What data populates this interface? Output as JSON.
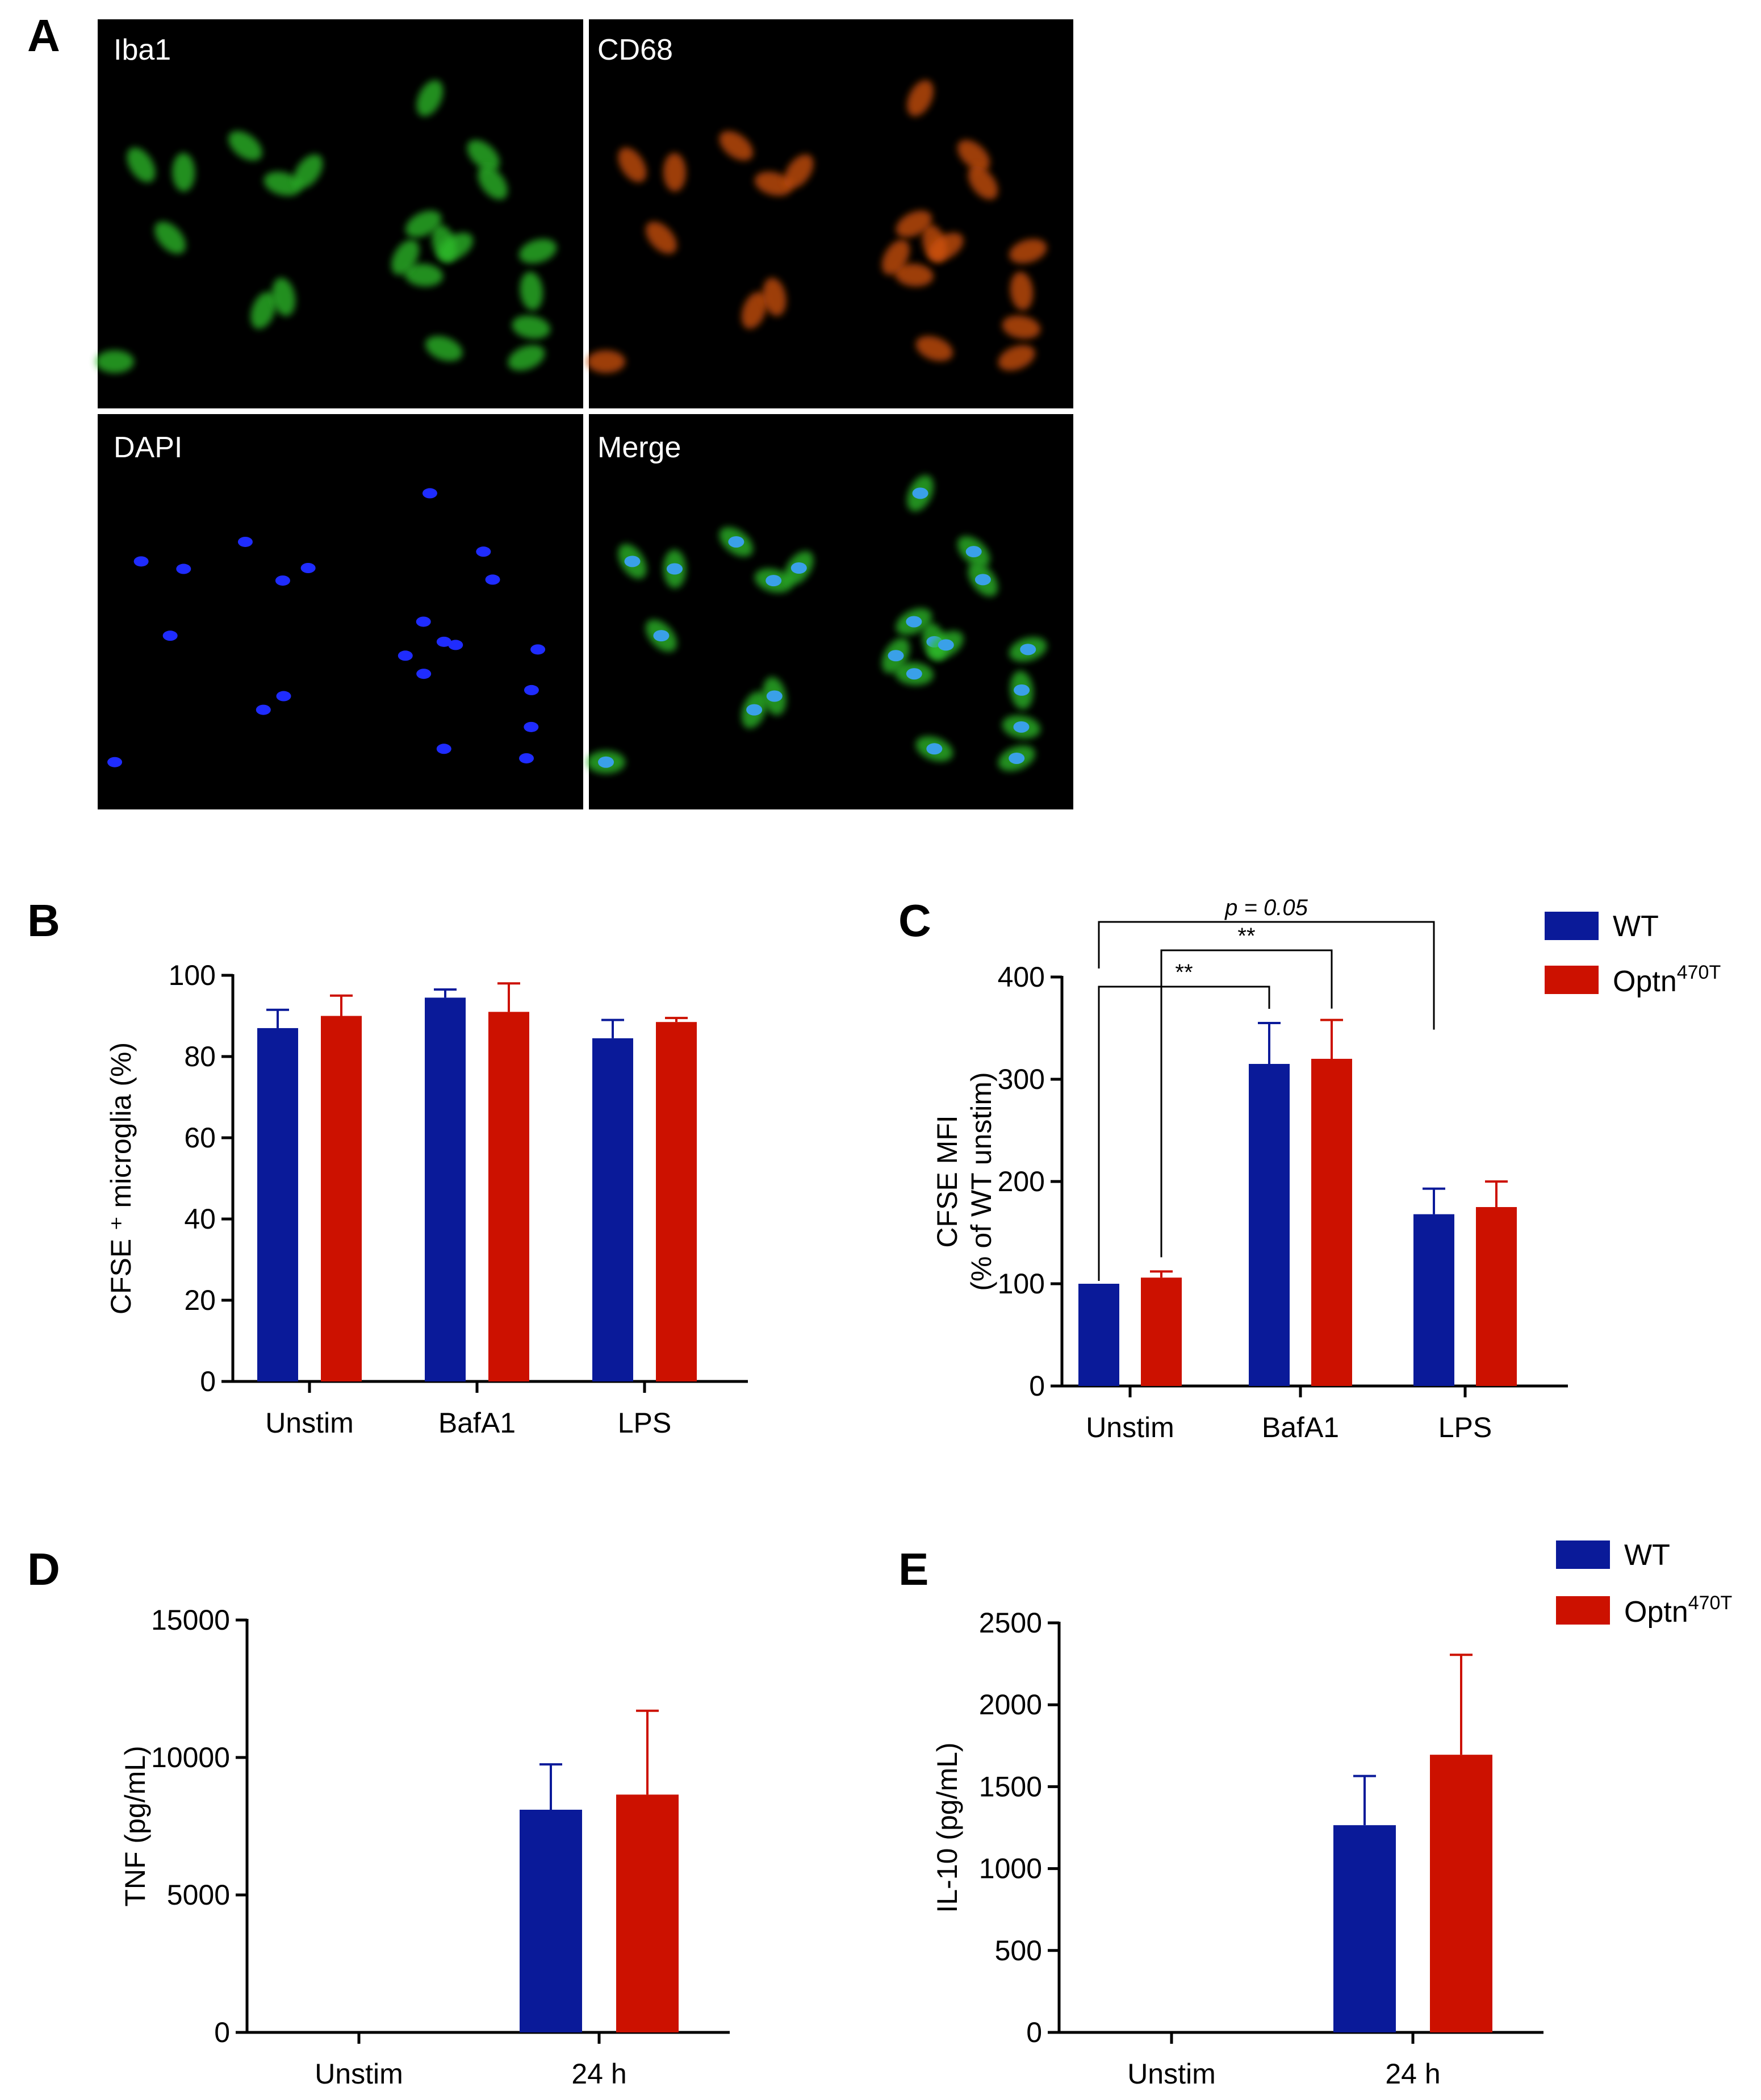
{
  "panel_labels": {
    "a": "A",
    "b": "B",
    "c": "C",
    "d": "D",
    "e": "E"
  },
  "micrographs": {
    "iba1": "Iba1",
    "cd68": "CD68",
    "dapi": "DAPI",
    "merge": "Merge"
  },
  "legend": {
    "wt": "WT",
    "optn_base": "Optn",
    "optn_sup": "470T"
  },
  "colors": {
    "wt": "#0a1a99",
    "optn": "#cc1100"
  },
  "chart_data": [
    {
      "id": "B",
      "type": "bar",
      "title": "",
      "ylabel": "CFSE ⁺ microglia (%)",
      "xlabel": "",
      "categories": [
        "Unstim",
        "BafA1",
        "LPS"
      ],
      "ylim": [
        0,
        100
      ],
      "yticks": [
        0,
        20,
        40,
        60,
        80,
        100
      ],
      "series": [
        {
          "name": "WT",
          "values": [
            87,
            94.5,
            84.5
          ],
          "errors": [
            4.5,
            2,
            4.5
          ]
        },
        {
          "name": "Optn470T",
          "values": [
            90,
            91,
            88.5
          ],
          "errors": [
            5,
            7,
            1
          ]
        }
      ]
    },
    {
      "id": "C",
      "type": "bar",
      "title": "",
      "ylabel": "CFSE MFI",
      "ylabel2": "(% of WT unstim)",
      "xlabel": "",
      "categories": [
        "Unstim",
        "BafA1",
        "LPS"
      ],
      "ylim": [
        0,
        400
      ],
      "yticks": [
        0,
        100,
        200,
        300,
        400
      ],
      "series": [
        {
          "name": "WT",
          "values": [
            100,
            315,
            168
          ],
          "errors": [
            0,
            40,
            25
          ]
        },
        {
          "name": "Optn470T",
          "values": [
            106,
            320,
            175
          ],
          "errors": [
            6,
            38,
            25
          ]
        }
      ],
      "annotations": [
        {
          "text": "**",
          "from": "Unstim WT",
          "to": "BafA1 WT"
        },
        {
          "text": "**",
          "from": "Unstim Optn470T",
          "to": "BafA1 Optn470T"
        },
        {
          "text": "p = 0.05",
          "from": "Unstim WT",
          "to": "LPS WT"
        }
      ]
    },
    {
      "id": "D",
      "type": "bar",
      "title": "",
      "ylabel": "TNF (pg/mL)",
      "xlabel": "",
      "categories": [
        "Unstim",
        "24 h"
      ],
      "ylim": [
        0,
        15000
      ],
      "yticks": [
        0,
        5000,
        10000,
        15000
      ],
      "series": [
        {
          "name": "WT",
          "values": [
            0,
            8100
          ],
          "errors": [
            0,
            1650
          ]
        },
        {
          "name": "Optn470T",
          "values": [
            0,
            8650
          ],
          "errors": [
            0,
            3050
          ]
        }
      ]
    },
    {
      "id": "E",
      "type": "bar",
      "title": "",
      "ylabel": "IL-10 (pg/mL)",
      "xlabel": "",
      "categories": [
        "Unstim",
        "24 h"
      ],
      "ylim": [
        0,
        2500
      ],
      "yticks": [
        0,
        500,
        1000,
        1500,
        2000,
        2500
      ],
      "series": [
        {
          "name": "WT",
          "values": [
            0,
            1265
          ],
          "errors": [
            0,
            300
          ]
        },
        {
          "name": "Optn470T",
          "values": [
            0,
            1695
          ],
          "errors": [
            0,
            610
          ]
        }
      ]
    }
  ]
}
